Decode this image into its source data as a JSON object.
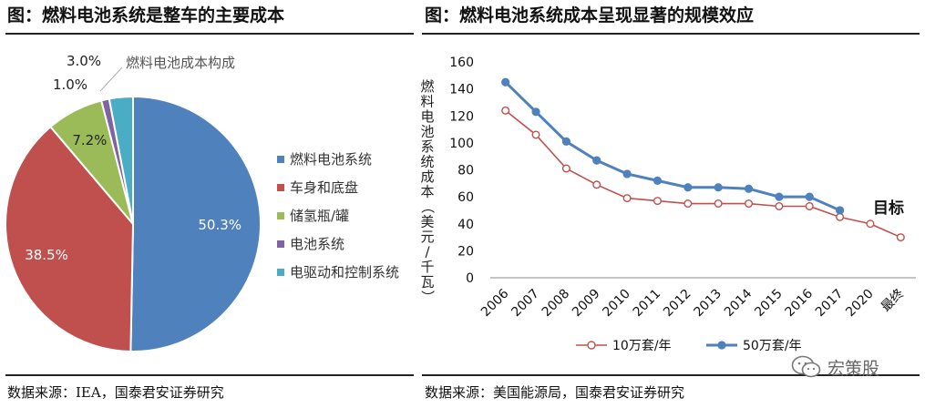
{
  "left": {
    "title": "图：燃料电池系统是整车的主要成本",
    "source": "数据来源：IEA，国泰君安证券研究"
  },
  "right": {
    "title": "图：燃料电池系统成本呈现显著的规模效应",
    "source": "数据来源：美国能源局，国泰君安证券研究"
  },
  "watermark": {
    "text": "宏策股",
    "icon": "wechat-icon"
  },
  "colors": {
    "blue": "#4f81bd",
    "red": "#c0504d",
    "green": "#9bbb59",
    "purple": "#8064a2",
    "teal": "#4bacc6"
  },
  "chart_data": [
    {
      "type": "pie",
      "title": "燃料电池成本构成",
      "legend_position": "right",
      "slices": [
        {
          "label": "燃料电池系统",
          "value": 50.3,
          "display": "50.3%",
          "color": "#4f81bd"
        },
        {
          "label": "车身和底盘",
          "value": 38.5,
          "display": "38.5%",
          "color": "#c0504d"
        },
        {
          "label": "储氢瓶/罐",
          "value": 7.2,
          "display": "7.2%",
          "color": "#9bbb59"
        },
        {
          "label": "电池系统",
          "value": 1.0,
          "display": "1.0%",
          "color": "#8064a2"
        },
        {
          "label": "电驱动和控制系统",
          "value": 3.0,
          "display": "3.0%",
          "color": "#4bacc6"
        }
      ]
    },
    {
      "type": "line",
      "categories": [
        "2006",
        "2007",
        "2008",
        "2009",
        "2010",
        "2011",
        "2012",
        "2013",
        "2014",
        "2015",
        "2016",
        "2017",
        "2020",
        "最终"
      ],
      "ylabel": "燃料电池系统成本（美元/千瓦）",
      "ylim": [
        0,
        160
      ],
      "yticks": [
        0,
        20,
        40,
        60,
        80,
        100,
        120,
        140,
        160
      ],
      "grid": false,
      "legend_position": "bottom",
      "annotation": "目标",
      "series": [
        {
          "name": "10万套/年",
          "color": "#c0504d",
          "marker": "hollow-circle",
          "values": [
            124,
            106,
            81,
            69,
            59,
            57,
            55,
            55,
            55,
            53,
            53,
            45,
            40,
            30
          ]
        },
        {
          "name": "50万套/年",
          "color": "#4f81bd",
          "marker": "filled-circle",
          "values": [
            145,
            123,
            101,
            87,
            77,
            72,
            67,
            67,
            66,
            60,
            60,
            50,
            null,
            null
          ]
        }
      ]
    }
  ]
}
